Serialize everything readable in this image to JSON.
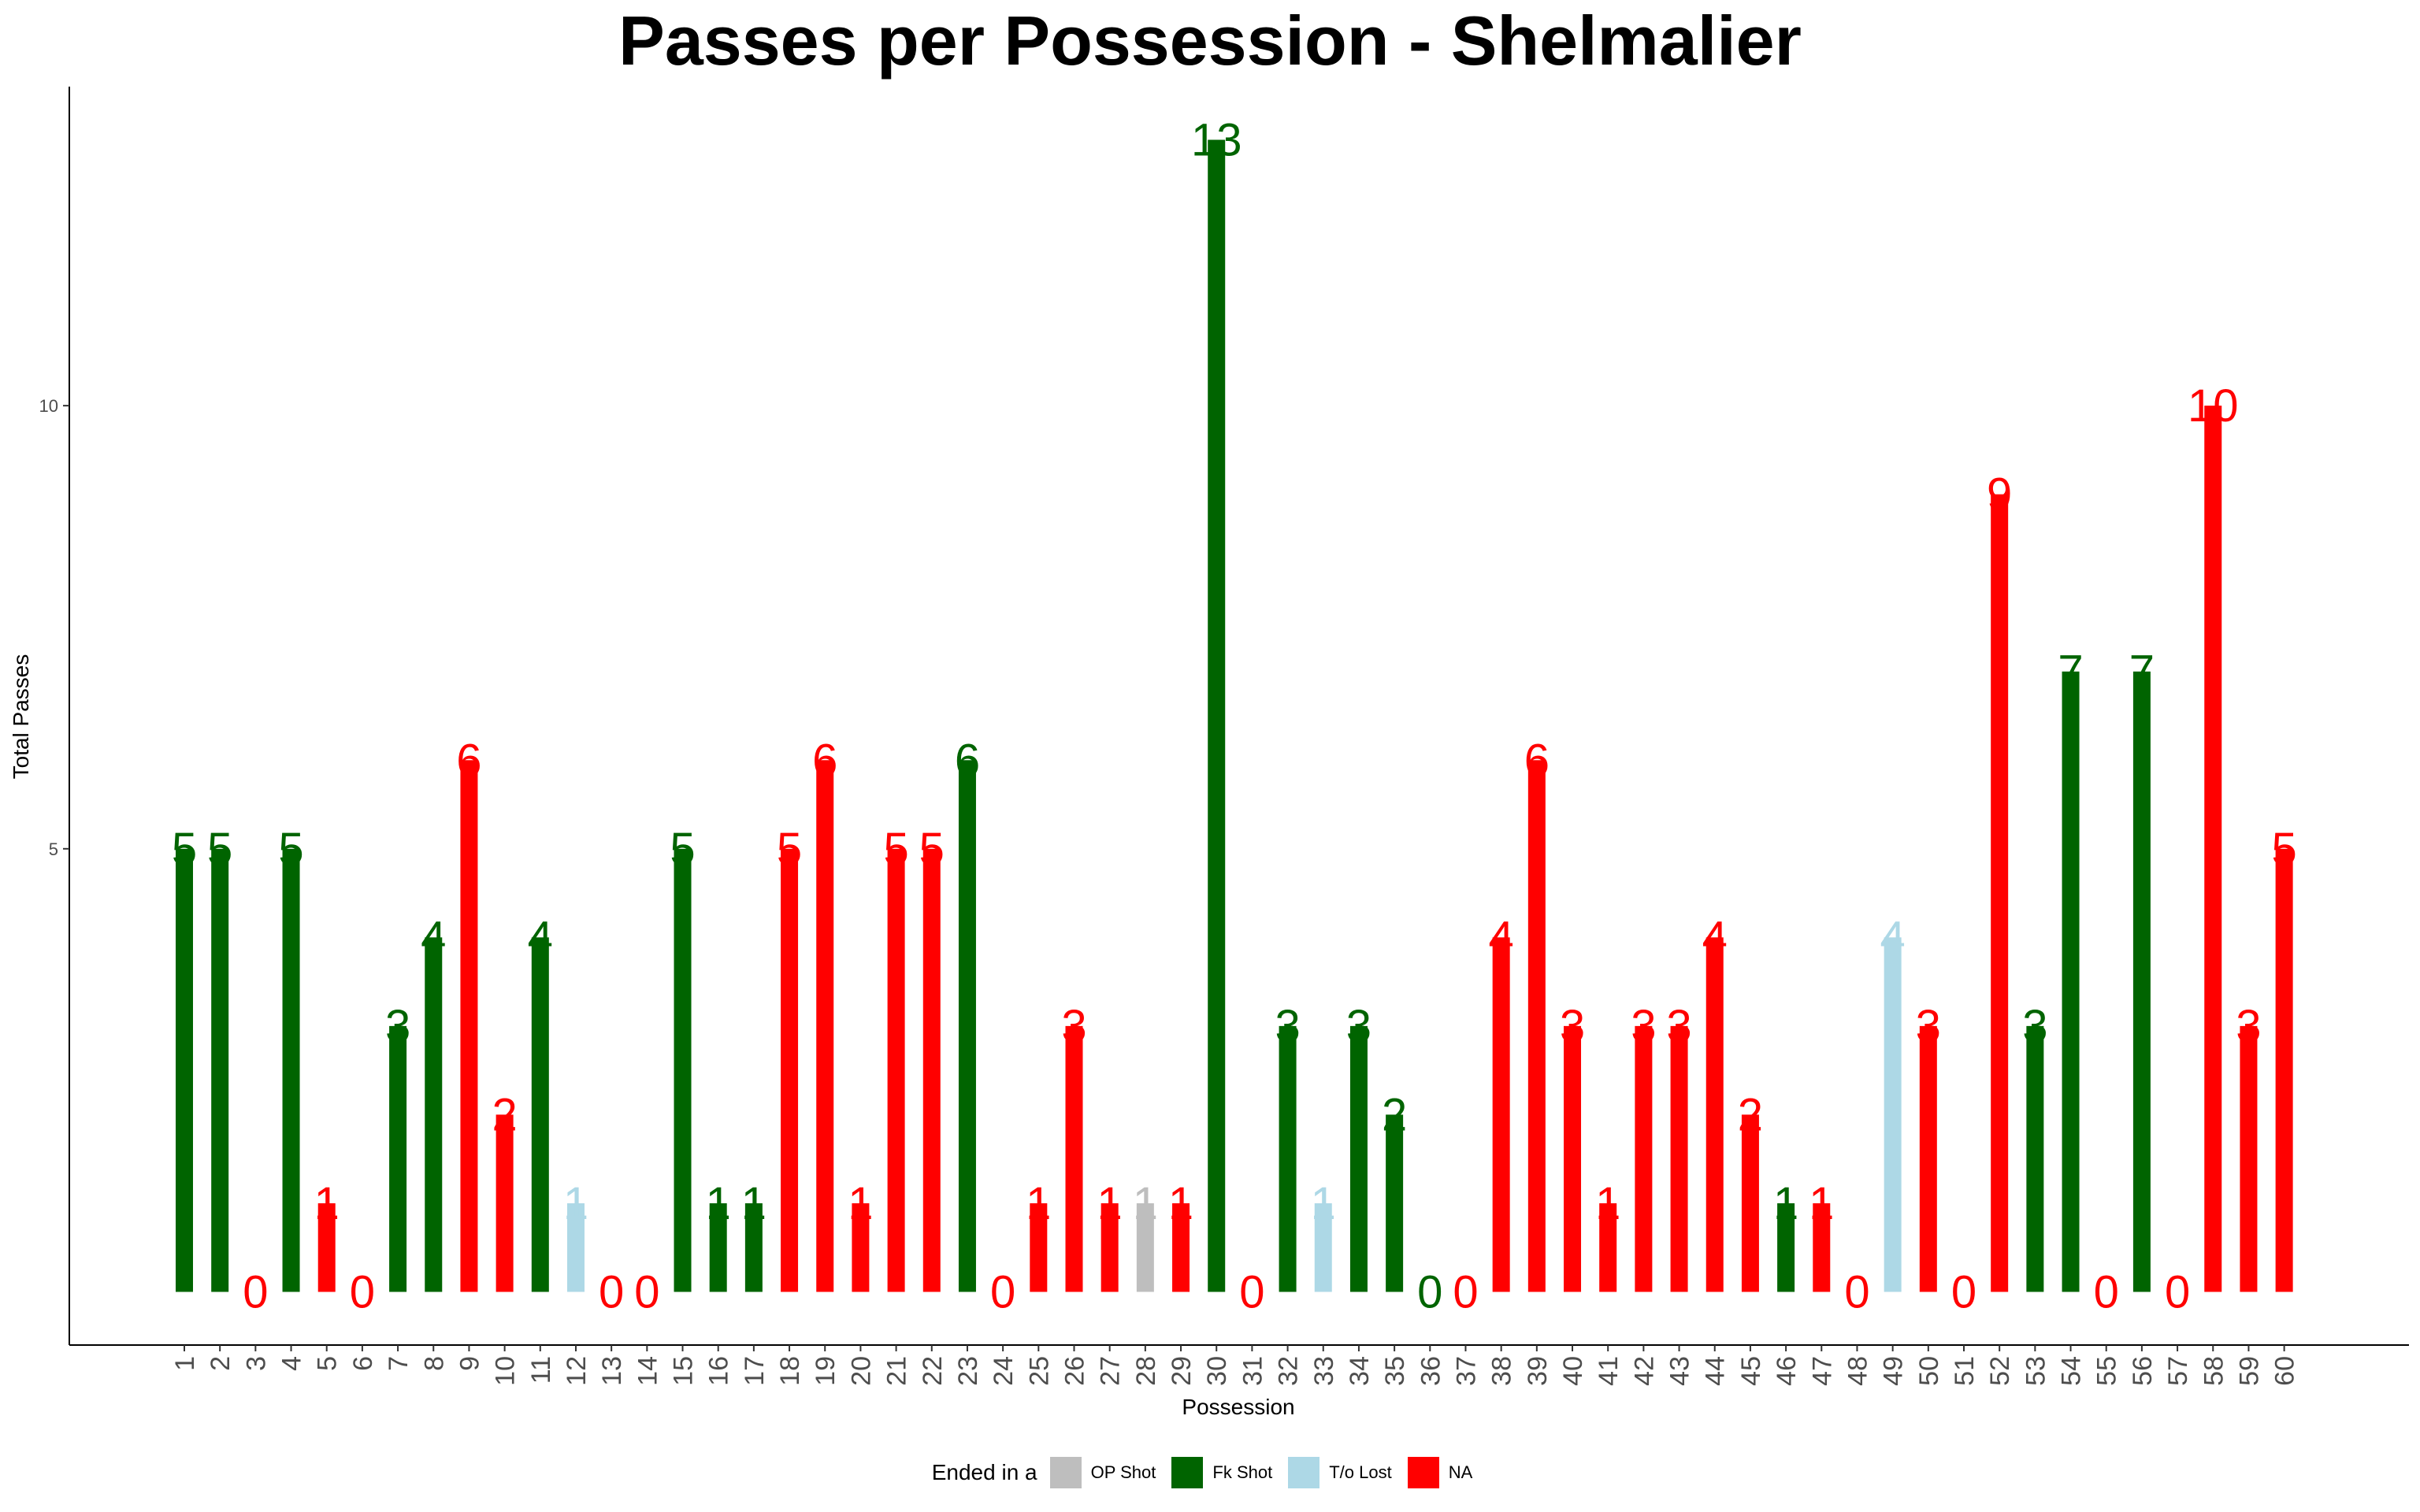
{
  "chart_data": {
    "type": "bar",
    "title": "Passes per Possession - Shelmalier",
    "xlabel": "Possession",
    "ylabel": "Total Passes",
    "ylim": [
      -0.6,
      13.6
    ],
    "yticks": [
      5,
      10
    ],
    "legend": {
      "title": "Ended in a",
      "placement": "bottom",
      "entries": [
        {
          "name": "OP Shot",
          "color": "#bebebe"
        },
        {
          "name": "Fk Shot",
          "color": "#006400"
        },
        {
          "name": "T/o Lost",
          "color": "#add8e6"
        },
        {
          "name": "NA",
          "color": "#ff0000"
        }
      ]
    },
    "categories": [
      "1",
      "2",
      "3",
      "4",
      "5",
      "6",
      "7",
      "8",
      "9",
      "10",
      "11",
      "12",
      "13",
      "14",
      "15",
      "16",
      "17",
      "18",
      "19",
      "20",
      "21",
      "22",
      "23",
      "24",
      "25",
      "26",
      "27",
      "28",
      "29",
      "30",
      "31",
      "32",
      "33",
      "34",
      "35",
      "36",
      "37",
      "38",
      "39",
      "40",
      "41",
      "42",
      "43",
      "44",
      "45",
      "46",
      "47",
      "48",
      "49",
      "50",
      "51",
      "52",
      "53",
      "54",
      "55",
      "56",
      "57",
      "58",
      "59",
      "60"
    ],
    "values": [
      5,
      5,
      0,
      5,
      1,
      0,
      3,
      4,
      6,
      2,
      4,
      1,
      0,
      0,
      5,
      1,
      1,
      5,
      6,
      1,
      5,
      5,
      6,
      0,
      1,
      3,
      1,
      1,
      1,
      13,
      0,
      3,
      1,
      3,
      2,
      0,
      0,
      4,
      6,
      3,
      1,
      3,
      3,
      4,
      2,
      1,
      1,
      0,
      4,
      3,
      0,
      9,
      3,
      7,
      0,
      7,
      0,
      10,
      3,
      5
    ],
    "outcomes": [
      "Fk Shot",
      "Fk Shot",
      "NA",
      "Fk Shot",
      "NA",
      "NA",
      "Fk Shot",
      "Fk Shot",
      "NA",
      "NA",
      "Fk Shot",
      "T/o Lost",
      "NA",
      "NA",
      "Fk Shot",
      "Fk Shot",
      "Fk Shot",
      "NA",
      "NA",
      "NA",
      "NA",
      "NA",
      "Fk Shot",
      "NA",
      "NA",
      "NA",
      "NA",
      "OP Shot",
      "NA",
      "Fk Shot",
      "NA",
      "Fk Shot",
      "T/o Lost",
      "Fk Shot",
      "Fk Shot",
      "Fk Shot",
      "NA",
      "NA",
      "NA",
      "NA",
      "NA",
      "NA",
      "NA",
      "NA",
      "NA",
      "Fk Shot",
      "NA",
      "NA",
      "T/o Lost",
      "NA",
      "NA",
      "NA",
      "Fk Shot",
      "Fk Shot",
      "NA",
      "Fk Shot",
      "NA",
      "NA",
      "NA",
      "NA"
    ]
  }
}
